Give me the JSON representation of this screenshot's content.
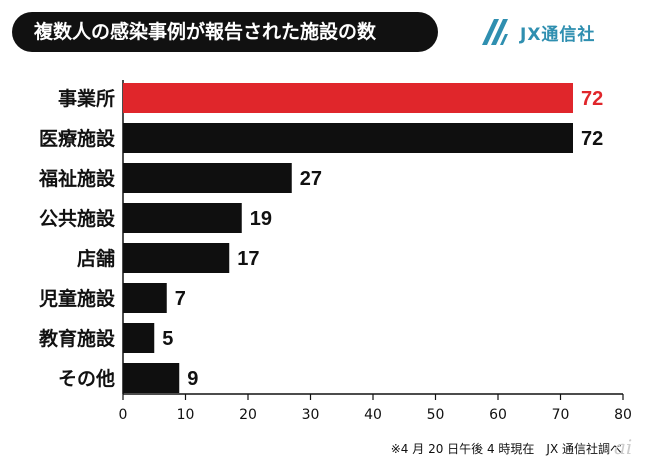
{
  "header": {
    "title": "複数人の感染事例が報告された施設の数",
    "brand": "JX通信社"
  },
  "footnote": "※4 月 20 日午後 4 時現在　JX 通信社調べ",
  "colors": {
    "highlight": "#e0262b",
    "bar": "#0f0f0f",
    "brand": "#2f8fb0",
    "title_bg": "#111111"
  },
  "chart_data": {
    "type": "bar",
    "orientation": "horizontal",
    "title": "複数人の感染事例が報告された施設の数",
    "categories": [
      "事業所",
      "医療施設",
      "福祉施設",
      "公共施設",
      "店舗",
      "児童施設",
      "教育施設",
      "その他"
    ],
    "values": [
      72,
      72,
      27,
      19,
      17,
      7,
      5,
      9
    ],
    "highlight_index": 0,
    "xlim": [
      0,
      80
    ],
    "xticks": [
      0,
      10,
      20,
      30,
      40,
      50,
      60,
      70,
      80
    ],
    "xlabel": "",
    "ylabel": "",
    "grid": false
  }
}
